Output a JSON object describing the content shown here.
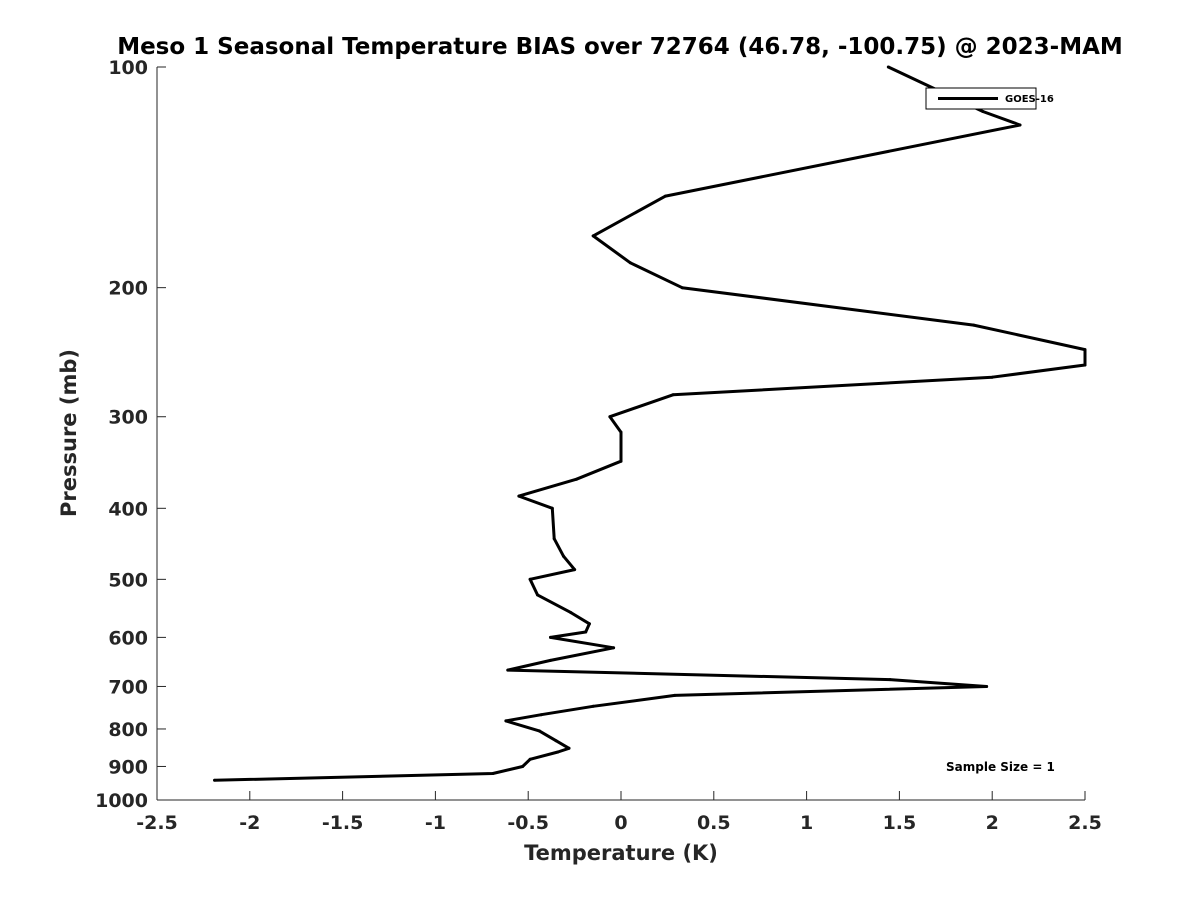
{
  "chart_data": {
    "type": "line",
    "title": "Meso 1 Seasonal Temperature BIAS over 72764 (46.78, -100.75) @ 2023-MAM",
    "xlabel": "Temperature (K)",
    "ylabel": "Pressure (mb)",
    "xlim": [
      -2.5,
      2.5
    ],
    "ylim": [
      100,
      1000
    ],
    "yscale": "log",
    "yreversed": true,
    "x_ticks": [
      -2.5,
      -2,
      -1.5,
      -1,
      -0.5,
      0,
      0.5,
      1,
      1.5,
      2,
      2.5
    ],
    "x_tick_labels": [
      "-2.5",
      "-2",
      "-1.5",
      "-1",
      "-0.5",
      "0",
      "0.5",
      "1",
      "1.5",
      "2",
      "2.5"
    ],
    "y_ticks": [
      100,
      200,
      300,
      400,
      500,
      600,
      700,
      800,
      900,
      1000
    ],
    "y_tick_labels": [
      "100",
      "200",
      "300",
      "400",
      "500",
      "600",
      "700",
      "800",
      "900",
      "1000"
    ],
    "grid": false,
    "legend_position": "top-right",
    "annotation": "Sample Size = 1",
    "series": [
      {
        "name": "GOES-16",
        "color": "#000000",
        "points": [
          {
            "x": 1.44,
            "p": 100
          },
          {
            "x": 1.95,
            "p": 115
          },
          {
            "x": 2.15,
            "p": 120
          },
          {
            "x": 0.24,
            "p": 150
          },
          {
            "x": -0.15,
            "p": 170
          },
          {
            "x": 0.05,
            "p": 185
          },
          {
            "x": 0.33,
            "p": 200
          },
          {
            "x": 1.9,
            "p": 225
          },
          {
            "x": 2.5,
            "p": 243
          },
          {
            "x": 2.5,
            "p": 255
          },
          {
            "x": 2.0,
            "p": 265
          },
          {
            "x": 0.28,
            "p": 280
          },
          {
            "x": -0.06,
            "p": 300
          },
          {
            "x": 0.0,
            "p": 315
          },
          {
            "x": 0.0,
            "p": 345
          },
          {
            "x": -0.24,
            "p": 365
          },
          {
            "x": -0.55,
            "p": 385
          },
          {
            "x": -0.37,
            "p": 400
          },
          {
            "x": -0.36,
            "p": 440
          },
          {
            "x": -0.31,
            "p": 465
          },
          {
            "x": -0.25,
            "p": 485
          },
          {
            "x": -0.49,
            "p": 500
          },
          {
            "x": -0.45,
            "p": 525
          },
          {
            "x": -0.27,
            "p": 555
          },
          {
            "x": -0.17,
            "p": 575
          },
          {
            "x": -0.19,
            "p": 590
          },
          {
            "x": -0.38,
            "p": 600
          },
          {
            "x": -0.04,
            "p": 620
          },
          {
            "x": -0.38,
            "p": 645
          },
          {
            "x": -0.61,
            "p": 665
          },
          {
            "x": 1.45,
            "p": 685
          },
          {
            "x": 1.97,
            "p": 700
          },
          {
            "x": 0.29,
            "p": 720
          },
          {
            "x": -0.15,
            "p": 745
          },
          {
            "x": -0.43,
            "p": 765
          },
          {
            "x": -0.62,
            "p": 780
          },
          {
            "x": -0.44,
            "p": 805
          },
          {
            "x": -0.35,
            "p": 830
          },
          {
            "x": -0.28,
            "p": 850
          },
          {
            "x": -0.34,
            "p": 860
          },
          {
            "x": -0.49,
            "p": 880
          },
          {
            "x": -0.53,
            "p": 900
          },
          {
            "x": -0.69,
            "p": 920
          },
          {
            "x": -2.19,
            "p": 940
          }
        ]
      }
    ]
  }
}
